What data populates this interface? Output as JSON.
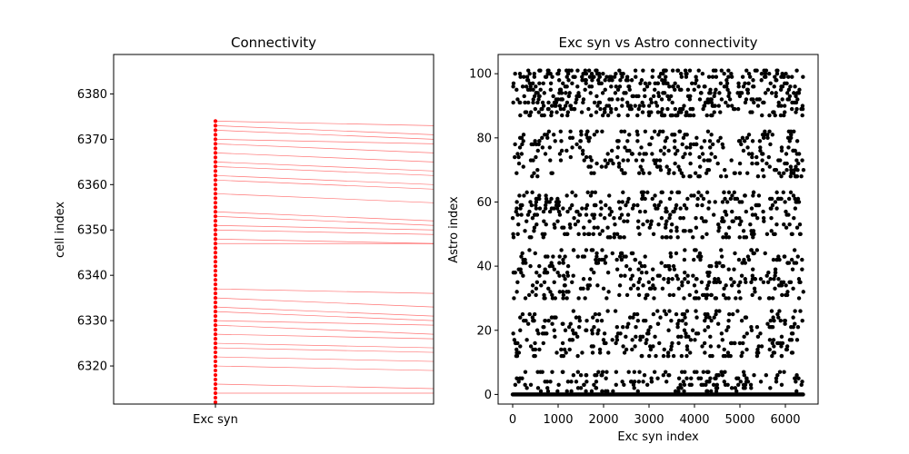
{
  "chart_data": [
    {
      "type": "scatter",
      "title": "Connectivity",
      "xlabel": "",
      "ylabel": "cell index",
      "x_categories": [
        "Exc syn"
      ],
      "ylim": [
        6311.6,
        6388.7
      ],
      "yticks": [
        6320,
        6330,
        6340,
        6350,
        6360,
        6370,
        6380
      ],
      "points_color": "#ff0000",
      "line_color": "#ff0000",
      "points": {
        "x": "Exc syn",
        "y_start": 6312,
        "y_end": 6374,
        "step": 1
      },
      "connections": {
        "source_y": [
          6314,
          6316,
          6320,
          6322,
          6324,
          6325,
          6327,
          6329,
          6330,
          6332,
          6333,
          6335,
          6337,
          6347,
          6348,
          6350,
          6351,
          6353,
          6354,
          6358,
          6361,
          6362,
          6364,
          6365,
          6367,
          6369,
          6370,
          6372,
          6373,
          6374
        ],
        "target_y": [
          6314,
          6315,
          6319,
          6321,
          6323,
          6324,
          6326,
          6327,
          6329,
          6330,
          6331,
          6333,
          6336,
          6347,
          6347,
          6349,
          6350,
          6351,
          6352,
          6356,
          6359,
          6360,
          6362,
          6363,
          6365,
          6367,
          6369,
          6370,
          6371,
          6373
        ]
      }
    },
    {
      "type": "scatter",
      "title": "Exc syn vs Astro connectivity",
      "xlabel": "Exc syn index",
      "ylabel": "Astro index",
      "xlim": [
        -320,
        6720
      ],
      "ylim": [
        -3,
        106
      ],
      "xticks": [
        0,
        1000,
        2000,
        3000,
        4000,
        5000,
        6000
      ],
      "yticks": [
        0,
        20,
        40,
        60,
        80,
        100
      ],
      "points_color": "#000000",
      "x_range": [
        0,
        6400
      ],
      "astro_bands": [
        {
          "y_min": 0,
          "y_max": 0,
          "count": 150
        },
        {
          "y_min": 1,
          "y_max": 7,
          "count": 170
        },
        {
          "y_min": 12,
          "y_max": 26,
          "count": 300
        },
        {
          "y_min": 30,
          "y_max": 45,
          "count": 330
        },
        {
          "y_min": 49,
          "y_max": 63,
          "count": 340
        },
        {
          "y_min": 68,
          "y_max": 82,
          "count": 300
        },
        {
          "y_min": 87,
          "y_max": 101,
          "count": 520
        }
      ]
    }
  ]
}
